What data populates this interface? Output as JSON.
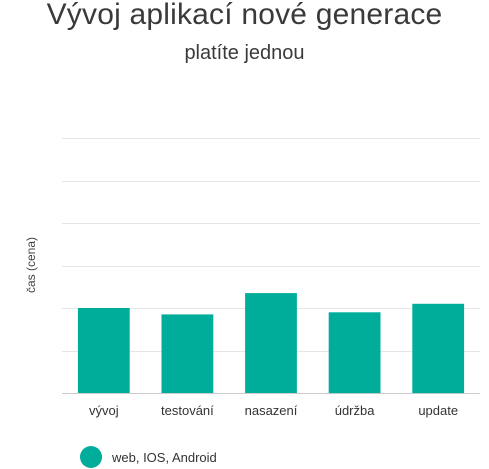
{
  "chart_data": {
    "type": "bar",
    "title": "Vývoj aplikací nové generace",
    "subtitle": "platíte jednou",
    "xlabel": "",
    "ylabel": "čas (cena)",
    "categories": [
      "vývoj",
      "testování",
      "nasazení",
      "údržba",
      "update"
    ],
    "series": [
      {
        "name": "web, IOS, Android",
        "values": [
          2.0,
          1.85,
          2.35,
          1.9,
          2.1
        ]
      }
    ],
    "ylim": [
      0,
      6
    ],
    "grid": true,
    "legend": "bottom-left",
    "colors": {
      "bar": "#00ad9b",
      "grid": "#e6e6e6",
      "axis": "#cccccc"
    }
  }
}
